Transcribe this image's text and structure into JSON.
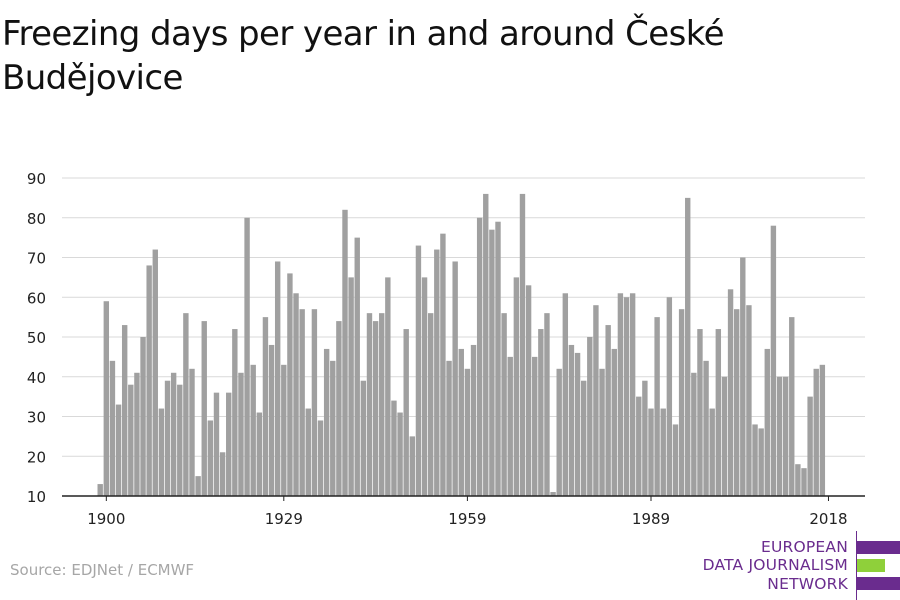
{
  "title": "Freezing days per year in and around České Budějovice",
  "source": "Source: EDJNet / ECMWF",
  "logo": {
    "lines": [
      "EUROPEAN",
      "DATA JOURNALISM",
      "NETWORK"
    ],
    "colors": {
      "purple": "#6a2c8e",
      "green": "#8fd03a"
    }
  },
  "colors": {
    "bar": "#a0a0a0",
    "grid": "#d9d9d9",
    "axis": "#222222",
    "text": "#222222"
  },
  "chart_data": {
    "type": "bar",
    "x_start": 1899,
    "ylim": [
      10,
      92
    ],
    "yticks": [
      10,
      20,
      30,
      40,
      50,
      60,
      70,
      80,
      90
    ],
    "xticks": [
      1900,
      1929,
      1959,
      1989,
      2018
    ],
    "grid": true,
    "values": [
      13,
      59,
      44,
      33,
      53,
      38,
      41,
      50,
      68,
      72,
      32,
      39,
      41,
      38,
      56,
      42,
      15,
      54,
      29,
      36,
      21,
      36,
      52,
      41,
      80,
      43,
      31,
      55,
      48,
      69,
      43,
      66,
      61,
      57,
      32,
      57,
      29,
      47,
      44,
      54,
      82,
      65,
      75,
      39,
      56,
      54,
      56,
      65,
      34,
      31,
      52,
      25,
      73,
      65,
      56,
      72,
      76,
      44,
      69,
      47,
      42,
      48,
      80,
      86,
      77,
      79,
      56,
      45,
      65,
      86,
      63,
      45,
      52,
      56,
      11,
      42,
      61,
      48,
      46,
      39,
      50,
      58,
      42,
      53,
      47,
      61,
      60,
      61,
      35,
      39,
      32,
      55,
      32,
      60,
      28,
      57,
      85,
      41,
      52,
      44,
      32,
      52,
      40,
      62,
      57,
      70,
      58,
      28,
      27,
      47,
      78,
      40,
      40,
      55,
      18,
      17,
      35,
      42,
      43
    ]
  }
}
